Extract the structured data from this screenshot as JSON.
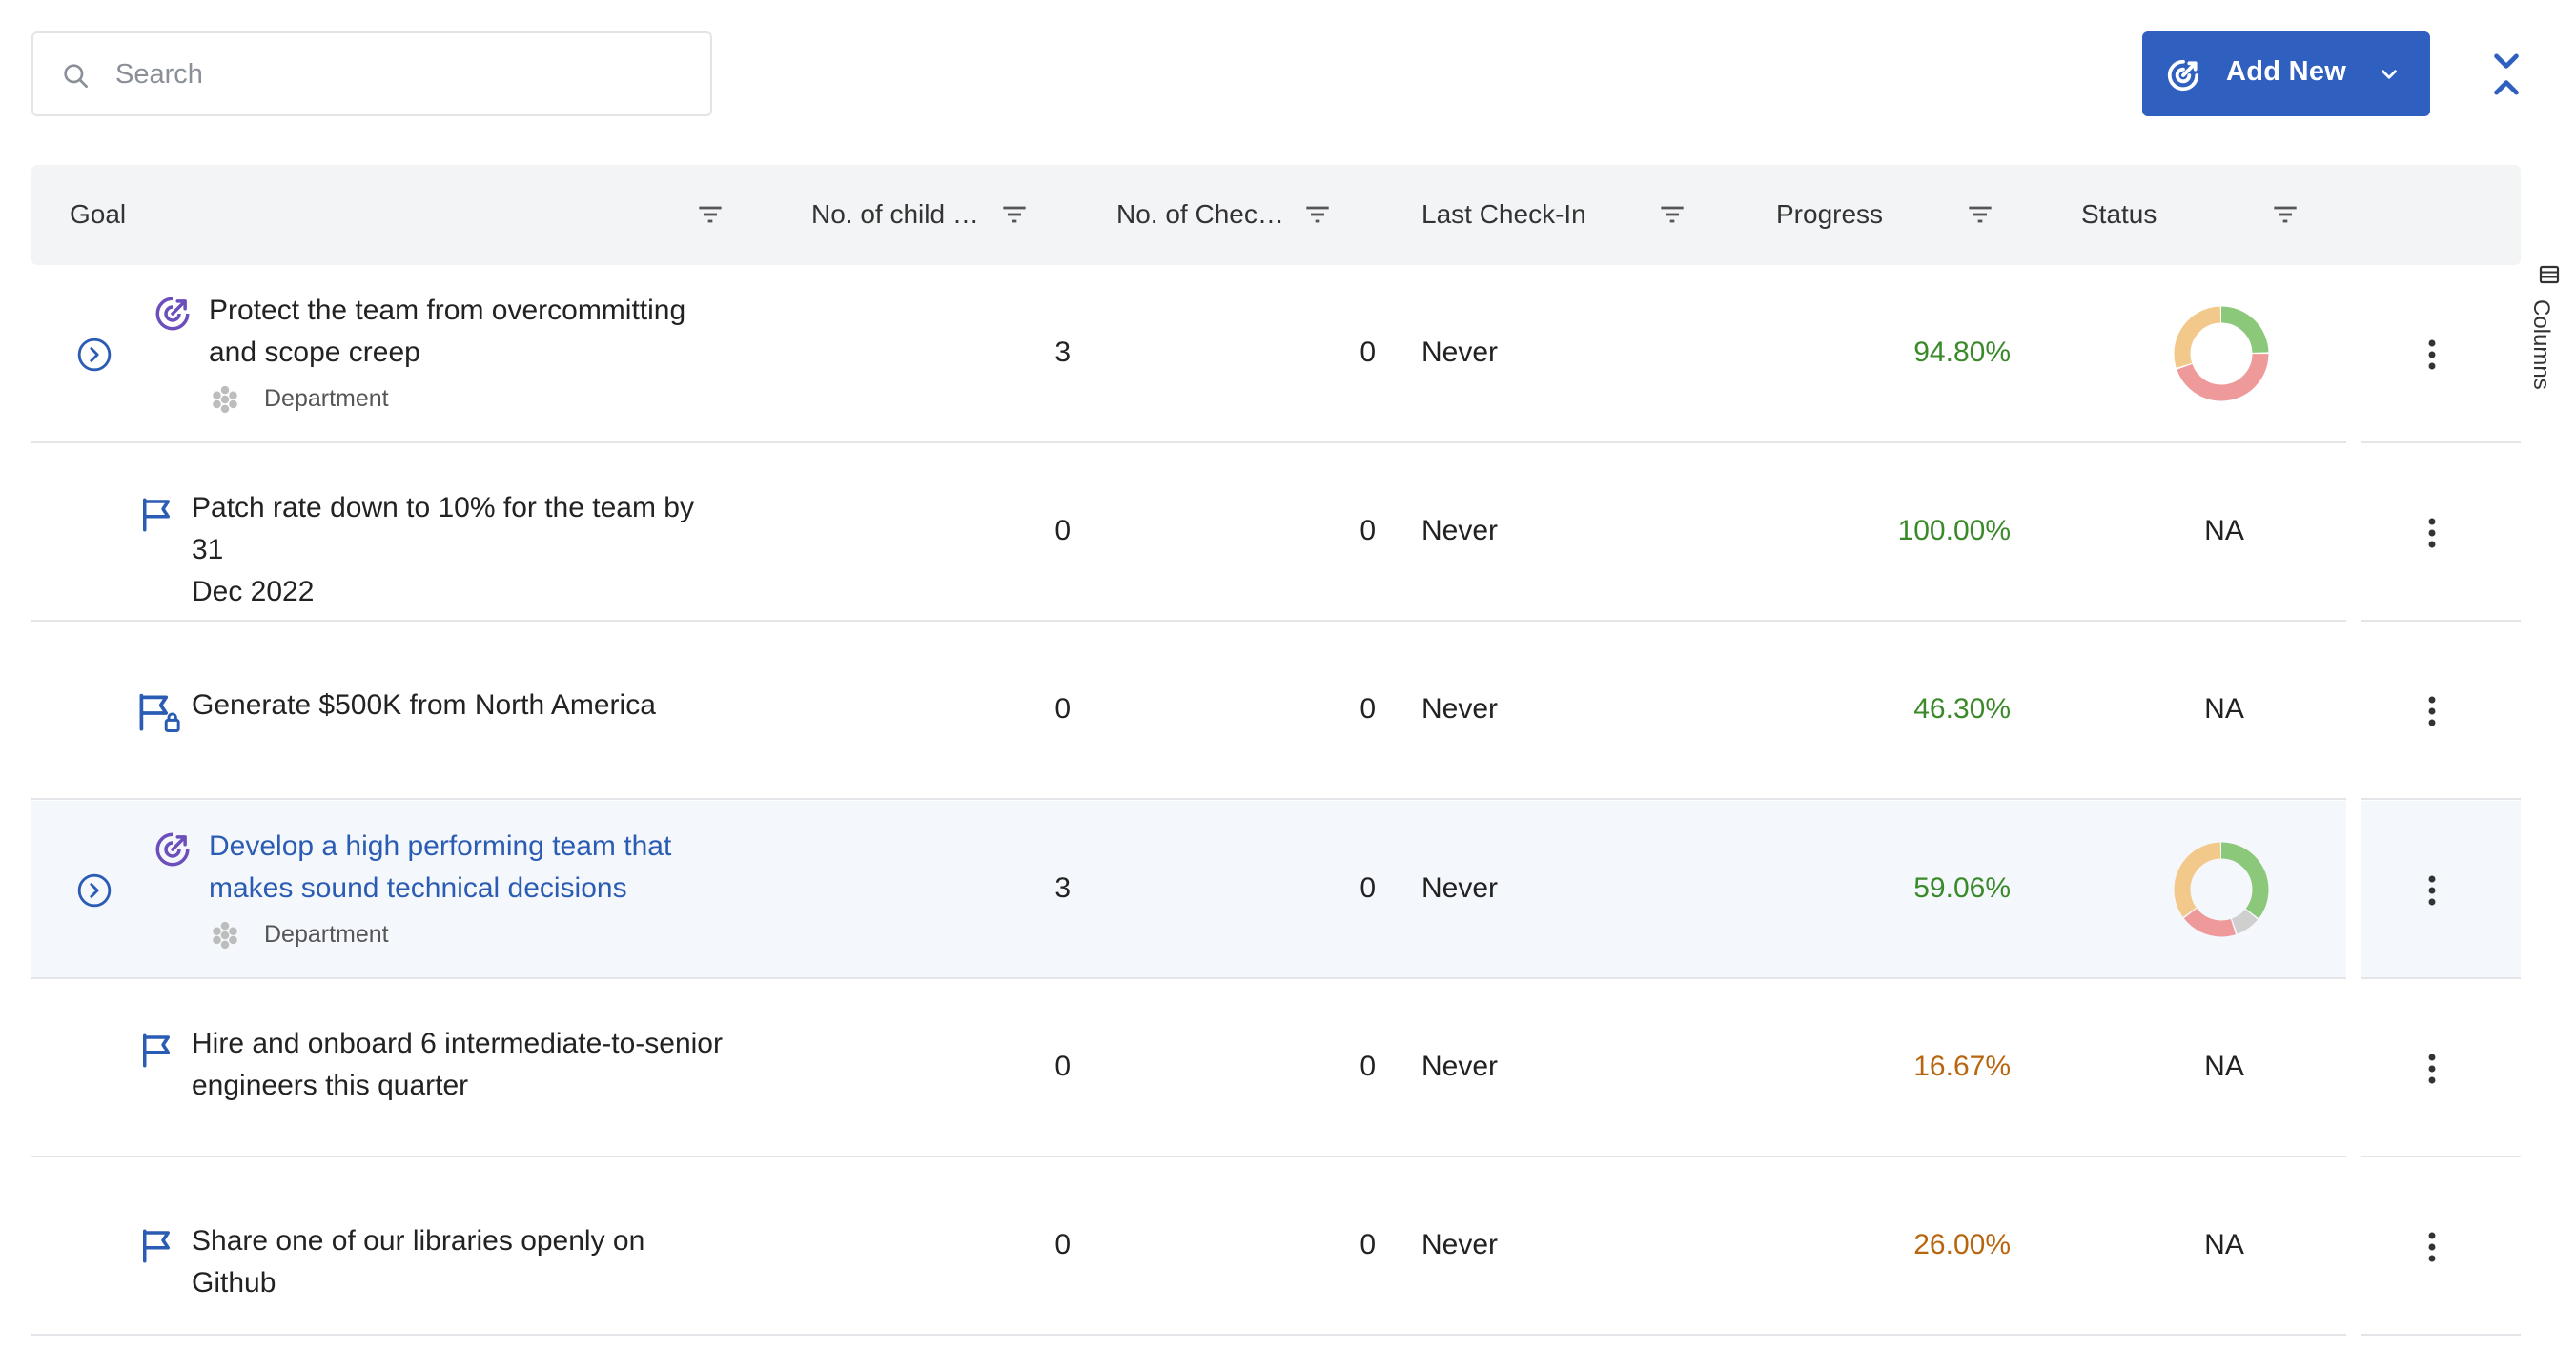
{
  "search": {
    "placeholder": "Search",
    "icon": "search-icon"
  },
  "toolbar": {
    "add_new_label": "Add New",
    "accent": "#2f5fbf"
  },
  "columns_tab": {
    "label": "Columns"
  },
  "table": {
    "headers": {
      "goal": "Goal",
      "children": "No. of child …",
      "checkins": "No. of Chec…",
      "last_checkin": "Last Check-In",
      "progress": "Progress",
      "status": "Status"
    },
    "rows": [
      {
        "type": "objective",
        "title": "Protect the team from overcommitting and scope creep",
        "title_lines": [
          "Protect the team from overcommitting",
          "and scope creep"
        ],
        "tag": "Department",
        "children": "3",
        "checkins": "0",
        "last_checkin": "Never",
        "progress": "94.80%",
        "progress_color": "#3a8a2a",
        "status": "donut",
        "status_breakdown": [
          {
            "label": "green",
            "value": 25,
            "color": "#8cc87a"
          },
          {
            "label": "red",
            "value": 45,
            "color": "#ef9a9a"
          },
          {
            "label": "orange",
            "value": 30,
            "color": "#f2c98a"
          }
        ]
      },
      {
        "type": "key-result",
        "title": "Patch rate down to 10% for the team by 31 Dec 2022",
        "title_lines": [
          "Patch rate down to 10% for the team by 31",
          "Dec 2022"
        ],
        "children": "0",
        "checkins": "0",
        "last_checkin": "Never",
        "progress": "100.00%",
        "progress_color": "#3a8a2a",
        "status": "NA"
      },
      {
        "type": "key-result-locked",
        "title": "Generate $500K from North America",
        "title_lines": [
          "Generate $500K from North America"
        ],
        "children": "0",
        "checkins": "0",
        "last_checkin": "Never",
        "progress": "46.30%",
        "progress_color": "#3a8a2a",
        "status": "NA"
      },
      {
        "type": "objective",
        "title": "Develop a high performing team that makes sound technical decisions",
        "title_lines": [
          "Develop a high performing team that",
          "makes sound technical decisions"
        ],
        "tag": "Department",
        "children": "3",
        "checkins": "0",
        "last_checkin": "Never",
        "progress": "59.06%",
        "progress_color": "#3a8a2a",
        "status": "donut",
        "status_breakdown": [
          {
            "label": "green",
            "value": 36,
            "color": "#8cc87a"
          },
          {
            "label": "grey",
            "value": 9,
            "color": "#cfcfcf"
          },
          {
            "label": "red",
            "value": 20,
            "color": "#ef9a9a"
          },
          {
            "label": "orange",
            "value": 35,
            "color": "#f2c98a"
          }
        ]
      },
      {
        "type": "key-result",
        "title": "Hire and onboard 6 intermediate-to-senior engineers this quarter",
        "title_lines": [
          "Hire and onboard 6 intermediate-to-senior",
          "engineers this quarter"
        ],
        "children": "0",
        "checkins": "0",
        "last_checkin": "Never",
        "progress": "16.67%",
        "progress_color": "#b8650f",
        "status": "NA"
      },
      {
        "type": "key-result",
        "title": "Share one of our libraries openly on Github",
        "title_lines": [
          "Share one of our libraries openly on Github"
        ],
        "children": "0",
        "checkins": "0",
        "last_checkin": "Never",
        "progress": "26.00%",
        "progress_color": "#b8650f",
        "status": "NA"
      }
    ]
  }
}
